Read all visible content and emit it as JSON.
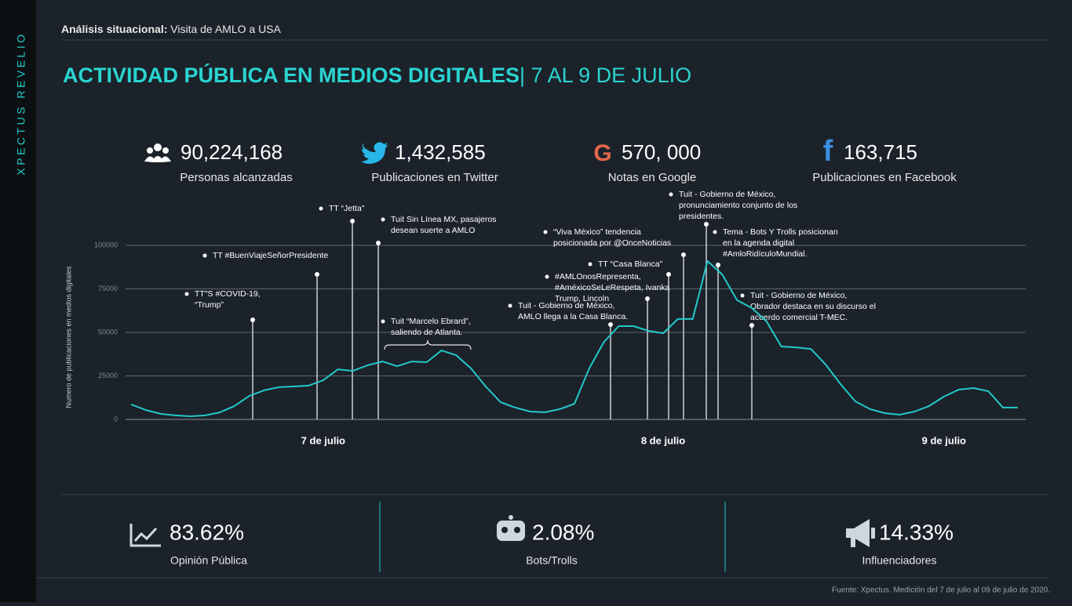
{
  "sidebar": {
    "brand": "XPECTUS REVELIO"
  },
  "header": {
    "label": "Análisis situacional:",
    "text": "Visita de AMLO a  USA"
  },
  "title": {
    "main": "ACTIVIDAD PÚBLICA EN MEDIOS DIGITALES",
    "dates": "| 7 AL 9 DE JULIO"
  },
  "stats": [
    {
      "value": "90,224,168",
      "label": "Personas alcanzadas"
    },
    {
      "value": "1,432,585",
      "label": "Publicaciones en Twitter"
    },
    {
      "value": "570, 000",
      "label": "Notas en Google"
    },
    {
      "value": "163,715",
      "label": "Publicaciones en Facebook"
    }
  ],
  "chart_data": {
    "type": "line",
    "y_label": "Numero de publicaciones en medios digitales",
    "color": "#22c9c9",
    "ylim": [
      0,
      100000
    ],
    "yticks": [
      0,
      25000,
      50000,
      75000,
      100000
    ],
    "grid": true,
    "categories": [
      null,
      null,
      null,
      null,
      null,
      null,
      null,
      null,
      null,
      null,
      null,
      null,
      null,
      "7 de julio",
      null,
      null,
      null,
      null,
      null,
      null,
      null,
      null,
      null,
      null,
      null,
      null,
      null,
      null,
      null,
      null,
      null,
      null,
      null,
      null,
      null,
      null,
      "8 de julio",
      null,
      null,
      null,
      null,
      null,
      null,
      null,
      null,
      null,
      null,
      null,
      null,
      null,
      null,
      null,
      null,
      null,
      null,
      "9 de julio",
      null,
      null,
      null,
      null,
      null
    ],
    "values": [
      8600,
      5400,
      3200,
      2300,
      1800,
      2300,
      4000,
      7700,
      13500,
      16700,
      18500,
      18900,
      19400,
      22500,
      28800,
      27900,
      31100,
      33300,
      30600,
      33300,
      32900,
      39600,
      36900,
      29300,
      18900,
      9900,
      6800,
      4500,
      4100,
      5900,
      9000,
      29300,
      44600,
      53600,
      53600,
      50900,
      49500,
      57700,
      57700,
      91000,
      83300,
      68500,
      64000,
      56300,
      41900,
      41400,
      40500,
      31500,
      20300,
      10400,
      5900,
      3600,
      2700,
      4500,
      7700,
      13100,
      17100,
      18000,
      16200,
      6800,
      6800
    ],
    "annotations": [
      {
        "lines": [
          "TT\"S #COVID-19,",
          "“Trump”"
        ]
      },
      {
        "lines": [
          "TT #BuenViajeSeñorPresidente"
        ]
      },
      {
        "lines": [
          "TT “Jetta”"
        ]
      },
      {
        "lines": [
          "Tuit Sin Línea MX, pasajeros",
          "desean suerte a AMLO"
        ]
      },
      {
        "lines": [
          "Tuit “Marcelo Ebrard”,",
          "saliendo de Atlanta."
        ]
      },
      {
        "lines": [
          "Tuit - Gobierno de México,",
          "AMLO llega a la Casa Blanca."
        ]
      },
      {
        "lines": [
          "“Viva México” tendencia",
          "posicionada por @OnceNoticias"
        ]
      },
      {
        "lines": [
          "TT “Casa Blanca”"
        ]
      },
      {
        "lines": [
          "#AMLOnosRepresenta,",
          "#AméxicoSeLeRespeta, Ivanka",
          "Trump,  Lincoln"
        ]
      },
      {
        "lines": [
          "Tuit - Gobierno de México,",
          "pronunciamiento conjunto de los",
          "presidentes."
        ]
      },
      {
        "lines": [
          "Tema - Bots Y Trolls posicionan",
          "en la agenda digital",
          "#AmloRidículoMundial."
        ]
      },
      {
        "lines": [
          "Tuit - Gobierno de México,",
          "Obrador destaca en su discurso el",
          "acuerdo comercial T-MEC."
        ]
      }
    ]
  },
  "summary": [
    {
      "value": "83.62%",
      "label": "Opinión Pública"
    },
    {
      "value": "2.08%",
      "label": "Bots/Trolls"
    },
    {
      "value": "14.33%",
      "label": "Influenciadores"
    }
  ],
  "footer": {
    "source": "Fuente: Xpectus. Medición del 7 de julio al 09 de julio de 2020."
  }
}
